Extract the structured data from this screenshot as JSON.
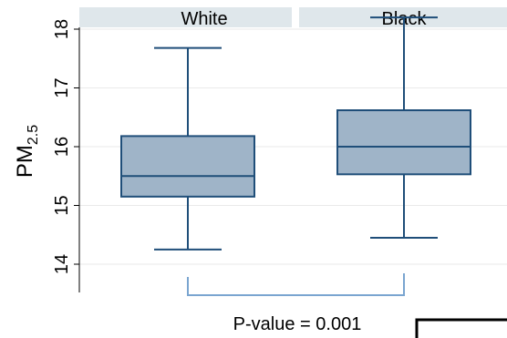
{
  "chart_data": {
    "type": "box",
    "ylabel": {
      "main": "PM",
      "sub": "2.5"
    },
    "ylim": [
      13.9,
      18.2
    ],
    "yticks": [
      14,
      15,
      16,
      17,
      18
    ],
    "ytick_labels": [
      "14",
      "15",
      "16",
      "17",
      "18"
    ],
    "grid": true,
    "panels": [
      {
        "label": "White",
        "whisker_low": 14.25,
        "q1": 15.15,
        "median": 15.5,
        "q3": 16.18,
        "whisker_high": 17.68
      },
      {
        "label": "Black",
        "whisker_low": 14.45,
        "q1": 15.53,
        "median": 16.0,
        "q3": 16.62,
        "whisker_high": 18.2
      }
    ],
    "annotation": "P-value = 0.001",
    "colors": {
      "box_fill": "#9fb4c8",
      "box_stroke": "#1f4e79",
      "strip_fill": "#dfe7eb",
      "bracket": "#7aa5d0",
      "grid": "#eaeaea"
    }
  }
}
